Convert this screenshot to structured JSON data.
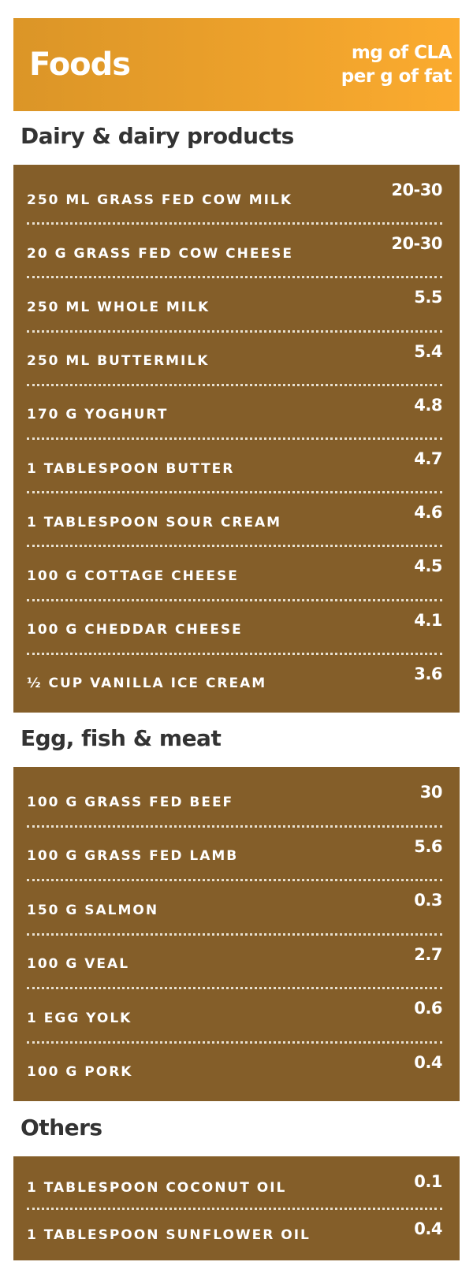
{
  "header": {
    "title": "Foods",
    "unit_line1": "mg of CLA",
    "unit_line2": "per g of fat",
    "gradient": [
      "#db9527",
      "#fbab2f"
    ]
  },
  "sections": [
    {
      "title": "Dairy & dairy products",
      "items": [
        {
          "label": "250 ML GRASS FED COW MILK",
          "value": "20-30"
        },
        {
          "label": "20 G GRASS FED COW CHEESE",
          "value": "20-30"
        },
        {
          "label": "250 ML WHOLE MILK",
          "value": "5.5"
        },
        {
          "label": "250 ML BUTTERMILK",
          "value": "5.4"
        },
        {
          "label": "170 G YOGHURT",
          "value": "4.8"
        },
        {
          "label": "1 TABLESPOON BUTTER",
          "value": "4.7"
        },
        {
          "label": "1 TABLESPOON SOUR CREAM",
          "value": "4.6"
        },
        {
          "label": "100 G COTTAGE CHEESE",
          "value": "4.5"
        },
        {
          "label": "100 G CHEDDAR CHEESE",
          "value": "4.1"
        },
        {
          "label": "½ CUP VANILLA ICE CREAM",
          "value": "3.6"
        }
      ]
    },
    {
      "title": "Egg, fish & meat",
      "items": [
        {
          "label": "100 G GRASS FED BEEF",
          "value": "30"
        },
        {
          "label": "100 G GRASS FED LAMB",
          "value": "5.6"
        },
        {
          "label": "150 G SALMON",
          "value": "0.3"
        },
        {
          "label": "100 G VEAL",
          "value": "2.7"
        },
        {
          "label": "1 EGG YOLK",
          "value": "0.6"
        },
        {
          "label": "100 G PORK",
          "value": "0.4"
        }
      ]
    },
    {
      "title": "Others",
      "items": [
        {
          "label": "1 TABLESPOON COCONUT OIL",
          "value": "0.1"
        },
        {
          "label": "1 TABLESPOON SUNFLOWER OIL",
          "value": "0.4"
        }
      ]
    }
  ],
  "colors": {
    "box": "#845e29",
    "heading": "#333333"
  }
}
